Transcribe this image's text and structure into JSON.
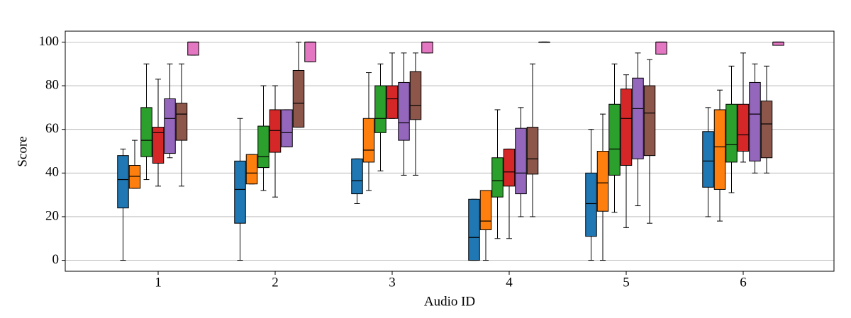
{
  "chart_data": {
    "type": "box",
    "x_label": "Audio ID",
    "y_label": "Score",
    "categories": [
      "1",
      "2",
      "3",
      "4",
      "5",
      "6"
    ],
    "ylim": [
      -5,
      105
    ],
    "yticks": [
      0,
      20,
      40,
      60,
      80,
      100
    ],
    "grid": true,
    "series": [
      {
        "color": "#1f77b4",
        "whislo": [
          0,
          0,
          26,
          0,
          0,
          20
        ],
        "q1": [
          24,
          17,
          30.5,
          0,
          11,
          33.5
        ],
        "med": [
          37,
          32.5,
          36.5,
          10.5,
          26,
          45.5
        ],
        "q3": [
          48,
          45.5,
          46.5,
          28,
          40,
          59
        ],
        "whishi": [
          51,
          65,
          46.5,
          28,
          60,
          70
        ]
      },
      {
        "color": "#ff7f0e",
        "whislo": [
          33,
          35,
          32,
          0,
          0,
          18
        ],
        "q1": [
          33,
          35,
          45,
          14,
          22.5,
          32.5
        ],
        "med": [
          38.5,
          40,
          50.5,
          18,
          35.5,
          52
        ],
        "q3": [
          43.5,
          48.5,
          65,
          32,
          50,
          69
        ],
        "whishi": [
          55,
          48.5,
          86,
          32,
          67,
          78
        ]
      },
      {
        "color": "#2ca02c",
        "whislo": [
          37,
          32,
          41,
          10,
          22,
          31
        ],
        "q1": [
          47.5,
          42.5,
          58.5,
          29,
          39,
          45
        ],
        "med": [
          55,
          47.5,
          65,
          36.5,
          51,
          53
        ],
        "q3": [
          70,
          61.5,
          80,
          47,
          71.5,
          71.5
        ],
        "whishi": [
          90,
          80,
          90,
          69,
          90,
          89
        ]
      },
      {
        "color": "#d62728",
        "whislo": [
          34,
          29,
          65,
          10,
          15,
          45
        ],
        "q1": [
          44.5,
          49.5,
          65,
          34,
          43.5,
          50
        ],
        "med": [
          58.5,
          59.5,
          74,
          40.5,
          65,
          57.5
        ],
        "q3": [
          61,
          69,
          80,
          51,
          78.5,
          71.5
        ],
        "whishi": [
          83,
          80,
          95,
          51,
          85,
          95
        ]
      },
      {
        "color": "#9467bd",
        "whislo": [
          47,
          52,
          39,
          20,
          25,
          40
        ],
        "q1": [
          49,
          52,
          55,
          30.5,
          46.5,
          45.5
        ],
        "med": [
          65,
          58.5,
          63,
          40,
          69.5,
          67
        ],
        "q3": [
          74,
          69,
          81.5,
          60.5,
          83.5,
          81.5
        ],
        "whishi": [
          90,
          69,
          95,
          70,
          95,
          90
        ]
      },
      {
        "color": "#8c564b",
        "whislo": [
          34,
          61,
          39,
          20,
          17,
          40
        ],
        "q1": [
          55,
          61,
          64.5,
          39.5,
          48,
          47
        ],
        "med": [
          67,
          72,
          71,
          46.5,
          67.5,
          62.5
        ],
        "q3": [
          72,
          87,
          86.5,
          61,
          80,
          73
        ],
        "whishi": [
          90,
          100,
          95,
          90,
          92,
          89
        ]
      },
      {
        "color": "#e377c2",
        "whislo": [
          94,
          91,
          95,
          100,
          94.5,
          98.5
        ],
        "q1": [
          94,
          91,
          95,
          100,
          94.5,
          98.5
        ],
        "med": [
          100,
          100,
          100,
          100,
          100,
          100
        ],
        "q3": [
          100,
          100,
          100,
          100,
          100,
          100
        ],
        "whishi": [
          100,
          100,
          100,
          100,
          100,
          100
        ]
      }
    ]
  }
}
